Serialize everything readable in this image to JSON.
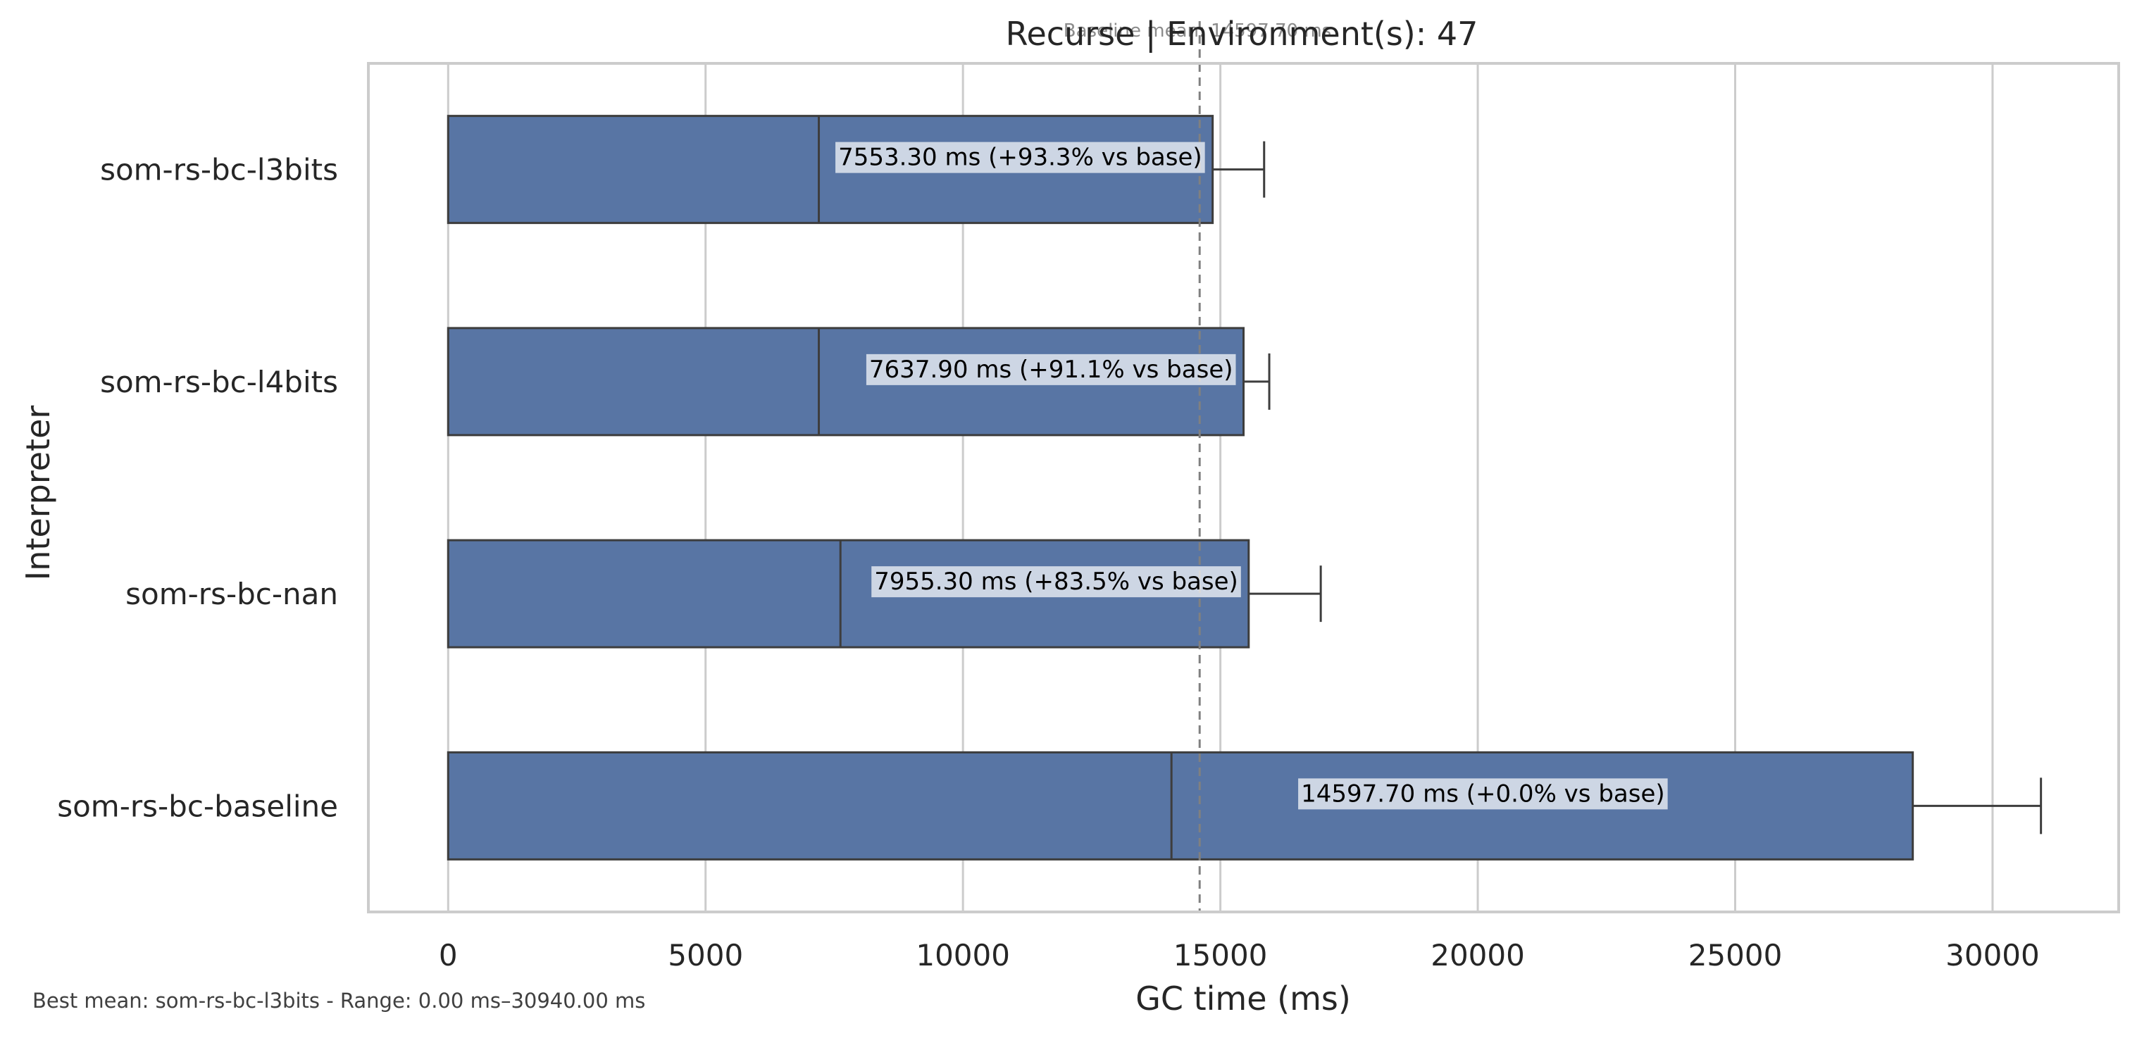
{
  "chart_data": {
    "type": "bar",
    "orientation": "horizontal",
    "title": "Recurse | Environment(s): 47",
    "baseline_note": "Baseline mean: 14597.70 ms",
    "xlabel": "GC time (ms)",
    "ylabel": "Interpreter",
    "xlim": [
      -1550,
      32450
    ],
    "xticks": [
      0,
      5000,
      10000,
      15000,
      20000,
      25000,
      30000
    ],
    "grid": "vertical",
    "baseline_value": 14597.7,
    "bar_color": "#5875a4",
    "categories": [
      "som-rs-bc-l3bits",
      "som-rs-bc-l4bits",
      "som-rs-bc-nan",
      "som-rs-bc-baseline"
    ],
    "series": [
      {
        "values": [
          14850,
          15450,
          15550,
          28450
        ],
        "median": [
          7200,
          7200,
          7620,
          14050
        ],
        "error_max": [
          15850,
          15950,
          16950,
          30940
        ],
        "labels": [
          "7553.30 ms  (+93.3% vs base)",
          "7637.90 ms  (+91.1% vs base)",
          "7955.30 ms  (+83.5% vs base)",
          "14597.70 ms  (+0.0% vs base)"
        ]
      }
    ]
  },
  "footer": "Best mean: som-rs-bc-l3bits - Range: 0.00 ms–30940.00 ms"
}
